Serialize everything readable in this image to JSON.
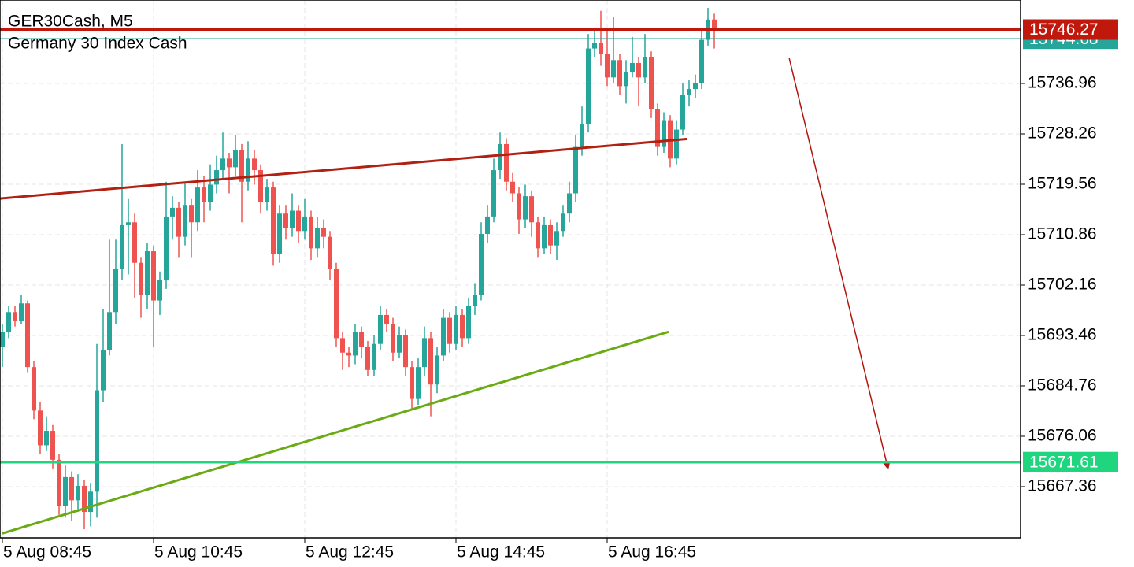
{
  "chart_data": {
    "type": "candlestick",
    "title": "GER30Cash, M5",
    "subtitle": "Germany 30 Index Cash",
    "categories": [
      "5 Aug 08:45",
      null,
      null,
      null,
      null,
      null,
      null,
      null,
      null,
      null,
      null,
      null,
      null,
      null,
      null,
      null,
      null,
      null,
      null,
      null,
      null,
      null,
      null,
      null,
      "5 Aug 10:45",
      null,
      null,
      null,
      null,
      null,
      null,
      null,
      null,
      null,
      null,
      null,
      null,
      null,
      null,
      null,
      null,
      null,
      null,
      null,
      null,
      null,
      null,
      null,
      "5 Aug 12:45",
      null,
      null,
      null,
      null,
      null,
      null,
      null,
      null,
      null,
      null,
      null,
      null,
      null,
      null,
      null,
      null,
      null,
      null,
      null,
      null,
      null,
      null,
      null,
      "5 Aug 14:45",
      null,
      null,
      null,
      null,
      null,
      null,
      null,
      null,
      null,
      null,
      null,
      null,
      null,
      null,
      null,
      null,
      null,
      null,
      null,
      null,
      null,
      null,
      null,
      "5 Aug 16:45",
      null,
      null,
      null,
      null,
      null,
      null,
      null,
      null,
      null,
      null,
      null,
      null,
      null,
      null,
      null,
      null,
      null
    ],
    "candles": [
      [
        15691.5,
        15695.5,
        15688.0,
        15694.0
      ],
      [
        15694.0,
        15698.5,
        15693.0,
        15697.5
      ],
      [
        15697.5,
        15698.5,
        15695.0,
        15696.0
      ],
      [
        15696.0,
        15700.5,
        15695.5,
        15699.0
      ],
      [
        15699.0,
        15699.5,
        15687.0,
        15688.0
      ],
      [
        15688.0,
        15689.0,
        15679.0,
        15680.5
      ],
      [
        15680.5,
        15682.0,
        15673.0,
        15674.5
      ],
      [
        15674.5,
        15679.5,
        15673.5,
        15677.0
      ],
      [
        15677.0,
        15678.0,
        15670.5,
        15672.0
      ],
      [
        15672.0,
        15673.0,
        15662.5,
        15664.0
      ],
      [
        15664.0,
        15671.0,
        15662.0,
        15669.0
      ],
      [
        15669.0,
        15670.0,
        15661.5,
        15665.0
      ],
      [
        15665.0,
        15669.5,
        15663.0,
        15667.5
      ],
      [
        15667.5,
        15668.5,
        15660.0,
        15663.0
      ],
      [
        15663.0,
        15668.0,
        15660.5,
        15666.5
      ],
      [
        15666.5,
        15692.0,
        15662.0,
        15684.0
      ],
      [
        15684.0,
        15698.0,
        15682.0,
        15691.0
      ],
      [
        15691.0,
        15710.0,
        15690.0,
        15697.5
      ],
      [
        15697.5,
        15710.0,
        15695.5,
        15705.0
      ],
      [
        15705.0,
        15726.5,
        15703.0,
        15712.5
      ],
      [
        15712.5,
        15717.0,
        15704.0,
        15713.0
      ],
      [
        15713.0,
        15714.5,
        15700.0,
        15706.0
      ],
      [
        15706.0,
        15707.0,
        15696.5,
        15700.5
      ],
      [
        15700.5,
        15709.5,
        15698.0,
        15708.0
      ],
      [
        15708.0,
        15709.0,
        15691.5,
        15699.5
      ],
      [
        15699.5,
        15704.5,
        15697.0,
        15703.0
      ],
      [
        15703.0,
        15720.0,
        15701.5,
        15714.0
      ],
      [
        15714.0,
        15717.5,
        15710.0,
        15715.5
      ],
      [
        15715.5,
        15716.5,
        15707.0,
        15710.5
      ],
      [
        15710.5,
        15720.0,
        15709.0,
        15716.0
      ],
      [
        15716.0,
        15717.0,
        15707.0,
        15713.0
      ],
      [
        15713.0,
        15722.0,
        15711.5,
        15719.0
      ],
      [
        15719.0,
        15721.0,
        15713.0,
        15716.5
      ],
      [
        15716.5,
        15723.0,
        15715.0,
        15719.5
      ],
      [
        15719.5,
        15724.5,
        15718.0,
        15722.0
      ],
      [
        15722.0,
        15728.5,
        15720.5,
        15724.0
      ],
      [
        15724.0,
        15725.0,
        15718.0,
        15722.5
      ],
      [
        15722.5,
        15728.0,
        15721.0,
        15725.5
      ],
      [
        15725.5,
        15726.5,
        15713.0,
        15720.0
      ],
      [
        15720.0,
        15727.0,
        15718.5,
        15724.0
      ],
      [
        15724.0,
        15725.5,
        15719.5,
        15722.0
      ],
      [
        15722.0,
        15723.0,
        15714.5,
        15716.5
      ],
      [
        15716.5,
        15720.5,
        15715.0,
        15719.0
      ],
      [
        15719.0,
        15720.0,
        15705.5,
        15707.5
      ],
      [
        15707.5,
        15716.0,
        15706.0,
        15714.5
      ],
      [
        15714.5,
        15716.0,
        15710.0,
        15712.0
      ],
      [
        15712.0,
        15718.0,
        15710.5,
        15715.0
      ],
      [
        15715.0,
        15716.0,
        15709.5,
        15711.5
      ],
      [
        15711.5,
        15717.0,
        15710.0,
        15714.0
      ],
      [
        15714.0,
        15715.0,
        15706.5,
        15708.5
      ],
      [
        15708.5,
        15714.0,
        15707.0,
        15712.0
      ],
      [
        15712.0,
        15713.5,
        15708.5,
        15710.5
      ],
      [
        15710.5,
        15711.5,
        15703.0,
        15705.0
      ],
      [
        15705.0,
        15706.0,
        15691.5,
        15693.0
      ],
      [
        15693.0,
        15694.0,
        15687.5,
        15690.5
      ],
      [
        15690.5,
        15691.5,
        15688.0,
        15690.0
      ],
      [
        15690.0,
        15695.5,
        15688.5,
        15694.0
      ],
      [
        15694.0,
        15695.0,
        15689.5,
        15691.5
      ],
      [
        15691.5,
        15692.5,
        15686.5,
        15687.5
      ],
      [
        15687.5,
        15693.5,
        15686.5,
        15692.0
      ],
      [
        15692.0,
        15698.5,
        15691.0,
        15697.0
      ],
      [
        15697.0,
        15698.0,
        15694.0,
        15695.5
      ],
      [
        15695.5,
        15696.5,
        15689.0,
        15690.5
      ],
      [
        15690.5,
        15695.0,
        15689.5,
        15693.5
      ],
      [
        15693.5,
        15694.5,
        15686.5,
        15688.0
      ],
      [
        15688.0,
        15689.0,
        15680.5,
        15682.5
      ],
      [
        15682.5,
        15689.5,
        15681.5,
        15688.0
      ],
      [
        15688.0,
        15695.0,
        15686.5,
        15693.0
      ],
      [
        15693.0,
        15694.0,
        15679.5,
        15685.0
      ],
      [
        15685.0,
        15691.5,
        15683.5,
        15690.0
      ],
      [
        15690.0,
        15698.0,
        15689.0,
        15696.5
      ],
      [
        15696.5,
        15697.5,
        15690.5,
        15692.0
      ],
      [
        15692.0,
        15698.5,
        15691.0,
        15697.0
      ],
      [
        15697.0,
        15698.0,
        15691.5,
        15693.0
      ],
      [
        15693.0,
        15700.0,
        15692.0,
        15698.5
      ],
      [
        15698.5,
        15702.5,
        15697.0,
        15700.5
      ],
      [
        15700.5,
        15713.0,
        15699.5,
        15711.0
      ],
      [
        15711.0,
        15716.0,
        15709.5,
        15714.0
      ],
      [
        15714.0,
        15724.0,
        15713.0,
        15722.0
      ],
      [
        15722.0,
        15728.5,
        15720.5,
        15726.5
      ],
      [
        15726.5,
        15727.5,
        15718.5,
        15720.0
      ],
      [
        15720.0,
        15721.5,
        15716.5,
        15718.0
      ],
      [
        15718.0,
        15719.0,
        15711.0,
        15713.5
      ],
      [
        15713.5,
        15719.5,
        15712.0,
        15717.5
      ],
      [
        15717.5,
        15718.5,
        15710.5,
        15713.0
      ],
      [
        15713.0,
        15714.0,
        15707.0,
        15708.5
      ],
      [
        15708.5,
        15714.0,
        15707.5,
        15712.5
      ],
      [
        15712.5,
        15713.5,
        15707.5,
        15709.0
      ],
      [
        15709.0,
        15713.0,
        15706.5,
        15711.5
      ],
      [
        15711.5,
        15716.0,
        15710.5,
        15714.5
      ],
      [
        15714.5,
        15720.0,
        15713.0,
        15718.0
      ],
      [
        15718.0,
        15728.0,
        15716.5,
        15726.0
      ],
      [
        15726.0,
        15733.0,
        15724.5,
        15730.0
      ],
      [
        15730.0,
        15745.5,
        15728.5,
        15743.0
      ],
      [
        15743.0,
        15746.0,
        15741.5,
        15744.0
      ],
      [
        15744.0,
        15749.5,
        15740.0,
        15742.0
      ],
      [
        15742.0,
        15746.0,
        15736.5,
        15738.0
      ],
      [
        15738.0,
        15748.5,
        15737.0,
        15741.0
      ],
      [
        15741.0,
        15742.0,
        15735.0,
        15736.5
      ],
      [
        15736.5,
        15741.0,
        15733.5,
        15739.0
      ],
      [
        15739.0,
        15745.0,
        15738.0,
        15740.5
      ],
      [
        15740.5,
        15741.5,
        15733.0,
        15738.0
      ],
      [
        15738.0,
        15745.5,
        15737.0,
        15741.5
      ],
      [
        15741.5,
        15742.5,
        15731.0,
        15732.5
      ],
      [
        15732.5,
        15733.5,
        15724.5,
        15726.0
      ],
      [
        15726.0,
        15732.0,
        15725.0,
        15730.5
      ],
      [
        15730.5,
        15731.5,
        15722.5,
        15724.0
      ],
      [
        15724.0,
        15730.5,
        15723.0,
        15729.0
      ],
      [
        15729.0,
        15737.0,
        15728.0,
        15735.0
      ],
      [
        15735.0,
        15737.5,
        15733.0,
        15736.0
      ],
      [
        15736.0,
        15738.5,
        15734.5,
        15737.0
      ],
      [
        15737.0,
        15746.0,
        15736.0,
        15744.5
      ],
      [
        15744.5,
        15750.0,
        15743.5,
        15748.0
      ],
      [
        15748.0,
        15749.0,
        15743.0,
        15746.27
      ]
    ],
    "up_color": "#26a69a",
    "down_color": "#ef5350",
    "ylim": [
      15658.52,
      15751.37
    ],
    "yticks": [
      15667.36,
      15676.06,
      15684.76,
      15693.46,
      15702.16,
      15710.86,
      15719.56,
      15728.26,
      15736.96
    ],
    "grid": true,
    "levels": [
      {
        "value": 15744.68,
        "color": "#26a69a"
      },
      {
        "value": 15746.27,
        "color": "#c0180c"
      },
      {
        "value": 15671.61,
        "color": "#1fd67f"
      }
    ],
    "trendlines": [
      {
        "color": "#b22012",
        "points": [
          [
            -0.4,
            15717.1
          ],
          [
            108.75,
            15727.4
          ]
        ]
      },
      {
        "color": "#6aaa14",
        "points": [
          [
            0,
            15659.3
          ],
          [
            105.75,
            15694.1
          ]
        ]
      },
      {
        "color": "#b0160c",
        "arrow": true,
        "points": [
          [
            124.9,
            15741.3
          ],
          [
            140.6,
            15670.4
          ]
        ]
      }
    ]
  }
}
